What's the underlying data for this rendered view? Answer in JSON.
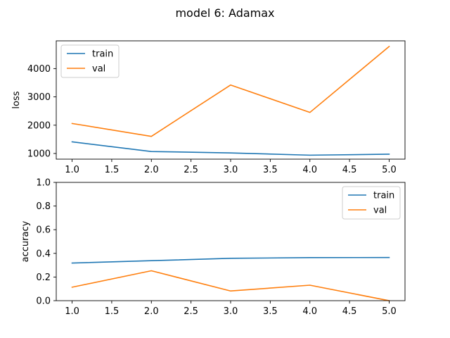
{
  "figure": {
    "title": "model 6: Adamax"
  },
  "colors": {
    "train": "#1f77b4",
    "val": "#ff7f0e",
    "legend_border": "#cccccc"
  },
  "chart_data": [
    {
      "type": "line",
      "x": [
        1.0,
        2.0,
        3.0,
        4.0,
        5.0
      ],
      "series": [
        {
          "name": "train",
          "values": [
            1410,
            1070,
            1020,
            940,
            975
          ]
        },
        {
          "name": "val",
          "values": [
            2060,
            1605,
            3420,
            2450,
            4780
          ]
        }
      ],
      "xlabel": "",
      "ylabel": "loss",
      "xlim": [
        0.8,
        5.2
      ],
      "ylim": [
        800,
        4980
      ],
      "xticks": [
        1.0,
        1.5,
        2.0,
        2.5,
        3.0,
        3.5,
        4.0,
        4.5,
        5.0
      ],
      "xtick_labels": [
        "1.0",
        "1.5",
        "2.0",
        "2.5",
        "3.0",
        "3.5",
        "4.0",
        "4.5",
        "5.0"
      ],
      "yticks": [
        1000,
        2000,
        3000,
        4000
      ],
      "ytick_labels": [
        "1000",
        "2000",
        "3000",
        "4000"
      ],
      "legend": {
        "entries": [
          "train",
          "val"
        ],
        "placement": "upper-left"
      },
      "grid": false
    },
    {
      "type": "line",
      "x": [
        1.0,
        2.0,
        3.0,
        4.0,
        5.0
      ],
      "series": [
        {
          "name": "train",
          "values": [
            0.318,
            0.338,
            0.358,
            0.364,
            0.365
          ]
        },
        {
          "name": "val",
          "values": [
            0.114,
            0.253,
            0.082,
            0.131,
            0.0
          ]
        }
      ],
      "xlabel": "",
      "ylabel": "accuracy",
      "xlim": [
        0.8,
        5.2
      ],
      "ylim": [
        0.0,
        1.0
      ],
      "xticks": [
        1.0,
        1.5,
        2.0,
        2.5,
        3.0,
        3.5,
        4.0,
        4.5,
        5.0
      ],
      "xtick_labels": [
        "1.0",
        "1.5",
        "2.0",
        "2.5",
        "3.0",
        "3.5",
        "4.0",
        "4.5",
        "5.0"
      ],
      "yticks": [
        0.0,
        0.2,
        0.4,
        0.6,
        0.8,
        1.0
      ],
      "ytick_labels": [
        "0.0",
        "0.2",
        "0.4",
        "0.6",
        "0.8",
        "1.0"
      ],
      "legend": {
        "entries": [
          "train",
          "val"
        ],
        "placement": "upper-right"
      },
      "grid": false
    }
  ]
}
